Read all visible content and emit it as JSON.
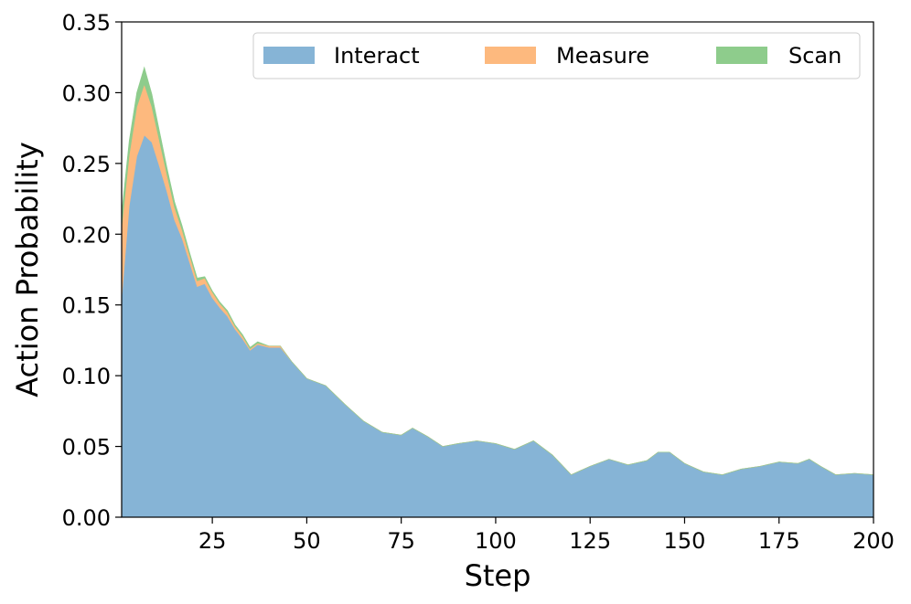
{
  "chart_data": {
    "type": "area",
    "stacked": true,
    "xlabel": "Step",
    "ylabel": "Action Probability",
    "xlim": [
      1,
      200
    ],
    "ylim": [
      0,
      0.35
    ],
    "x_ticks": [
      25,
      50,
      75,
      100,
      125,
      150,
      175,
      200
    ],
    "y_ticks": [
      0.0,
      0.05,
      0.1,
      0.15,
      0.2,
      0.25,
      0.3,
      0.35
    ],
    "y_tick_labels": [
      "0.00",
      "0.05",
      "0.10",
      "0.15",
      "0.20",
      "0.25",
      "0.30",
      "0.35"
    ],
    "legend_position": "top-right",
    "grid": false,
    "x": [
      1,
      3,
      5,
      7,
      9,
      11,
      13,
      15,
      17,
      19,
      21,
      23,
      25,
      27,
      29,
      31,
      33,
      35,
      37,
      40,
      43,
      46,
      50,
      55,
      60,
      65,
      70,
      75,
      78,
      82,
      86,
      90,
      95,
      100,
      105,
      110,
      115,
      120,
      125,
      130,
      135,
      140,
      143,
      146,
      150,
      155,
      160,
      165,
      170,
      175,
      180,
      183,
      186,
      190,
      195,
      200
    ],
    "series": [
      {
        "name": "Interact",
        "color": "#86b4d6",
        "values": [
          0.155,
          0.22,
          0.255,
          0.27,
          0.265,
          0.248,
          0.23,
          0.21,
          0.197,
          0.18,
          0.163,
          0.165,
          0.155,
          0.148,
          0.142,
          0.133,
          0.126,
          0.118,
          0.122,
          0.12,
          0.12,
          0.11,
          0.098,
          0.093,
          0.08,
          0.068,
          0.06,
          0.058,
          0.063,
          0.057,
          0.05,
          0.052,
          0.054,
          0.052,
          0.048,
          0.054,
          0.044,
          0.03,
          0.036,
          0.041,
          0.037,
          0.04,
          0.046,
          0.046,
          0.038,
          0.032,
          0.03,
          0.034,
          0.036,
          0.039,
          0.038,
          0.041,
          0.036,
          0.03,
          0.031,
          0.03
        ]
      },
      {
        "name": "Measure",
        "color": "#fdb97e",
        "values": [
          0.05,
          0.036,
          0.035,
          0.036,
          0.025,
          0.018,
          0.012,
          0.009,
          0.006,
          0.005,
          0.004,
          0.004,
          0.004,
          0.003,
          0.003,
          0.002,
          0.002,
          0.001,
          0.001,
          0.001,
          0.001,
          0.0,
          0.0,
          0.0,
          0.0,
          0.0,
          0.0,
          0.0,
          0.0,
          0.0,
          0.0,
          0.0,
          0.0,
          0.0,
          0.0,
          0.0,
          0.0,
          0.0,
          0.0,
          0.0,
          0.0,
          0.0,
          0.0,
          0.0,
          0.0,
          0.0,
          0.0,
          0.0,
          0.0,
          0.0,
          0.0,
          0.0,
          0.0,
          0.0,
          0.0,
          0.0
        ]
      },
      {
        "name": "Scan",
        "color": "#8ecc8c",
        "values": [
          0.01,
          0.01,
          0.01,
          0.012,
          0.009,
          0.007,
          0.005,
          0.004,
          0.003,
          0.002,
          0.002,
          0.001,
          0.001,
          0.001,
          0.001,
          0.001,
          0.001,
          0.001,
          0.001,
          0.0,
          0.0,
          0.0,
          0.0,
          0.0,
          0.0,
          0.0,
          0.0,
          0.0,
          0.0,
          0.0,
          0.0,
          0.0,
          0.0,
          0.0,
          0.0,
          0.0,
          0.0,
          0.0,
          0.0,
          0.0,
          0.0,
          0.0,
          0.0,
          0.0,
          0.0,
          0.0,
          0.0,
          0.0,
          0.0,
          0.0,
          0.0,
          0.0,
          0.0,
          0.0,
          0.0,
          0.0
        ]
      }
    ]
  }
}
